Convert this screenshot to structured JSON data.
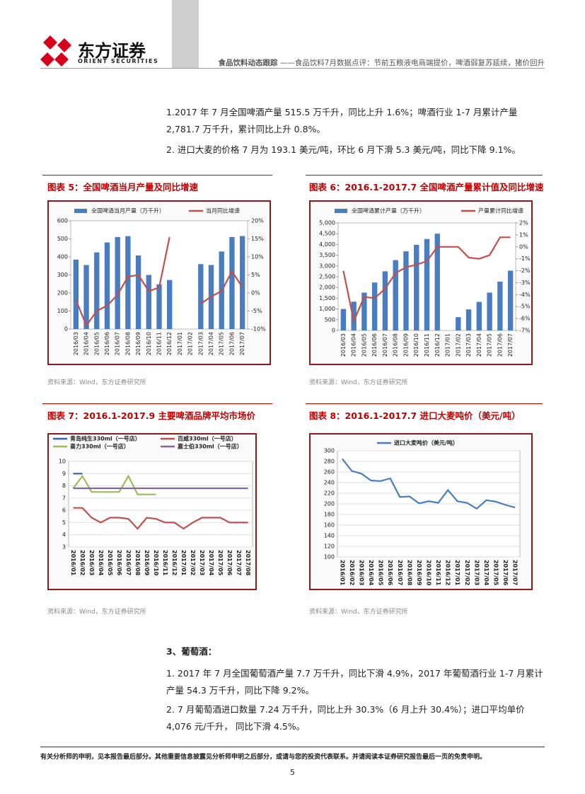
{
  "header": {
    "brand": "东方证券",
    "brand_en": "ORIENT SECURITIES",
    "section": "食品饮料动态跟踪",
    "subtitle": "——食品饮料7月数据点评：节前五粮液电商端提价，啤酒弱复苏延续，猪价回升"
  },
  "paragraphs": [
    "1.2017 年 7 月全国啤酒产量 515.5 万千升，同比上升 1.6%；啤酒行业 1-7 月累计产量 2,781.7 万千升，累计同比上升 0.8%。",
    "2. 进口大麦的价格 7 月为 193.1 美元/吨，环比 6 月下滑 5.3 美元/吨，同比下降 9.1%。"
  ],
  "section": "3、葡萄酒：",
  "paragraphs2": [
    "1. 2017 年 7 月全国葡萄酒产量 7.7 万千升，同比下滑 4.9%，2017 年葡萄酒行业 1-7 月累计产量 54.3 万千升，同比下降 9.2%。",
    "2. 7 月葡萄酒进口数量 7.24 万千升，同比上升 30.3%（6 月上升 30.4%）；进口平均单价 4,076 元/千升， 同比下滑 4.5%。"
  ],
  "charts": [
    {
      "type": "combo",
      "title": "图表 5：全国啤酒当月产量及同比增速",
      "source": "资料来源：Wind，东方证券研究所",
      "categories": [
        "2016/03",
        "2016/04",
        "2016/05",
        "2016/06",
        "2016/07",
        "2016/08",
        "2016/09",
        "2016/10",
        "2016/11",
        "2016/12",
        "2017/01",
        "2017/02",
        "2017/03",
        "2017/04",
        "2017/05",
        "2017/06",
        "2017/07"
      ],
      "series": [
        {
          "name": "全国啤酒当月产量（万千升）",
          "type": "bar",
          "color": "#4a7cc0",
          "values": [
            385,
            355,
            425,
            480,
            510,
            515,
            408,
            300,
            248,
            272,
            null,
            null,
            360,
            355,
            430,
            510,
            515.5
          ]
        },
        {
          "name": "当月同比增速",
          "type": "line",
          "axis": "y2",
          "color": "#c0504d",
          "values": [
            -2,
            -9,
            -5,
            -3.5,
            -0.5,
            4.5,
            5,
            0.5,
            1.5,
            15.5,
            null,
            null,
            -3,
            -1,
            0.5,
            6,
            1.6
          ]
        }
      ],
      "ylim": [
        0,
        600
      ],
      "yticks": [
        0,
        100,
        200,
        300,
        400,
        500,
        600
      ],
      "y2lim": [
        -10,
        20
      ],
      "y2ticks": [
        {
          "value": -10,
          "label": "-10%"
        },
        {
          "value": -5,
          "label": "-5%"
        },
        {
          "value": 0,
          "label": "0%"
        },
        {
          "value": 5,
          "label": "5%"
        },
        {
          "value": 10,
          "label": "10%"
        },
        {
          "value": 15,
          "label": "15%"
        },
        {
          "value": 20,
          "label": "20%"
        }
      ],
      "grid": false
    },
    {
      "type": "combo",
      "title": "图表 6：2016.1-2017.7 全国啤酒产量累计值及同比增速",
      "source": "资料来源：Wind，东方证券研究所",
      "categories": [
        "2016/03",
        "2016/04",
        "2016/05",
        "2016/06",
        "2016/07",
        "2016/08",
        "2016/09",
        "2016/10",
        "2016/11",
        "2016/12",
        "2017/01",
        "2017/02",
        "2017/03",
        "2017/04",
        "2017/05",
        "2017/06",
        "2017/07"
      ],
      "series": [
        {
          "name": "全国啤酒累计产量（万千升）",
          "type": "bar",
          "color": "#4a7cc0",
          "values": [
            1000,
            1340,
            1760,
            2230,
            2750,
            3270,
            3680,
            3980,
            4250,
            4500,
            null,
            620,
            980,
            1330,
            1760,
            2270,
            2781.7
          ]
        },
        {
          "name": "产量累计同比增速",
          "type": "line",
          "axis": "y2",
          "color": "#c0504d",
          "values": [
            -2,
            -6.2,
            -4.2,
            -4.3,
            -3.5,
            -2.2,
            -1.7,
            -1.5,
            -1.2,
            0,
            0,
            0,
            -0.9,
            -1,
            -0.7,
            0.8,
            0.8
          ]
        }
      ],
      "ylim": [
        0,
        5000
      ],
      "yticks": [
        0,
        500,
        {
          "value": 1000,
          "label": "1,000"
        },
        {
          "value": 1500,
          "label": "1,500"
        },
        {
          "value": 2000,
          "label": "2,000"
        },
        {
          "value": 2500,
          "label": "2,500"
        },
        {
          "value": 3000,
          "label": "3,000"
        },
        {
          "value": 3500,
          "label": "3,500"
        },
        {
          "value": 4000,
          "label": "4,000"
        },
        {
          "value": 4500,
          "label": "4,500"
        },
        {
          "value": 5000,
          "label": "5,000"
        }
      ],
      "y2lim": [
        -7,
        2
      ],
      "y2ticks": [
        {
          "value": -7,
          "label": "-7%"
        },
        {
          "value": -6,
          "label": "-6%"
        },
        {
          "value": -5,
          "label": "-5%"
        },
        {
          "value": -4,
          "label": "-4%"
        },
        {
          "value": -3,
          "label": "-3%"
        },
        {
          "value": -2,
          "label": "-2%"
        },
        {
          "value": -1,
          "label": "-1%"
        },
        {
          "value": 0,
          "label": "0%"
        },
        {
          "value": 1,
          "label": "1%"
        },
        {
          "value": 2,
          "label": "2%"
        }
      ],
      "grid": false
    },
    {
      "type": "line",
      "title": "图表 7：2016.1-2017.9 主要啤酒品牌平均市场价",
      "source": "资料来源：Wind，东方证券研究所",
      "categories": [
        "2016/01",
        "2016/02",
        "2016/03",
        "2016/04",
        "2016/05",
        "2016/06",
        "2016/07",
        "2016/08",
        "2016/09",
        "2016/10",
        "2016/11",
        "2016/12",
        "2017/01",
        "2017/02",
        "2017/03",
        "2017/04",
        "2017/05",
        "2017/06",
        "2017/07",
        "2017/08"
      ],
      "series": [
        {
          "name": "青岛纯生330ml（一号店）",
          "color": "#3a63ad",
          "values": [
            9,
            9,
            null,
            null,
            null,
            null,
            null,
            null,
            null,
            null,
            null,
            null,
            null,
            null,
            null,
            null,
            null,
            null,
            null,
            null
          ]
        },
        {
          "name": "百威330ml（一号店）",
          "color": "#c0504d",
          "values": [
            6.2,
            6.2,
            5.4,
            5,
            5.4,
            5.4,
            5.3,
            4.5,
            5.4,
            5.3,
            5,
            5,
            4.5,
            5,
            5.4,
            5.4,
            5.4,
            5,
            5,
            5
          ]
        },
        {
          "name": "喜力330ml（一号店）",
          "color": "#9bbb59",
          "values": [
            7.8,
            8.8,
            7.5,
            7.5,
            7.5,
            7.5,
            8.8,
            7.3,
            7.3,
            7.3,
            null,
            null,
            null,
            null,
            null,
            null,
            null,
            null,
            null,
            null
          ]
        },
        {
          "name": "嘉士伯330ml（一号店）",
          "color": "#8064a2",
          "values": [
            7.8,
            7.8,
            7.8,
            7.8,
            7.8,
            7.8,
            7.8,
            7.8,
            7.8,
            7.8,
            7.8,
            7.8,
            7.8,
            7.8,
            7.8,
            7.8,
            7.8,
            7.8,
            7.8,
            7.8
          ]
        }
      ],
      "ylim": [
        3,
        10
      ],
      "yticks": [
        3,
        4,
        5,
        6,
        7,
        8,
        9,
        10
      ],
      "grid": true
    },
    {
      "type": "line",
      "title": "图表 8：2016.1-2017.7 进口大麦吨价（美元/吨）",
      "source": "资料来源：Wind，东方证券研究所",
      "categories": [
        "2016/01",
        "2016/02",
        "2016/03",
        "2016/04",
        "2016/05",
        "2016/06",
        "2016/07",
        "2016/08",
        "2016/09",
        "2016/10",
        "2016/11",
        "2016/12",
        "2017/01",
        "2017/02",
        "2017/03",
        "2017/04",
        "2017/05",
        "2017/06",
        "2017/07"
      ],
      "series": [
        {
          "name": "进口大麦吨价（美元/吨）",
          "color": "#4a7ebb",
          "values": [
            285,
            262,
            257,
            244,
            243,
            248,
            213,
            214,
            201,
            205,
            202,
            226,
            205,
            202,
            191,
            207,
            204,
            198,
            193.1
          ]
        }
      ],
      "ylim": [
        100,
        300
      ],
      "yticks": [
        100,
        120,
        140,
        160,
        180,
        200,
        220,
        240,
        260,
        280,
        300
      ],
      "grid": true
    }
  ],
  "footer": "有关分析师的申明，见本报告最后部分。其他重要信息披露见分析师申明之后部分，或请与您的投资代表联系。并请阅读本证券研究报告最后一页的免责申明。",
  "page": "5"
}
